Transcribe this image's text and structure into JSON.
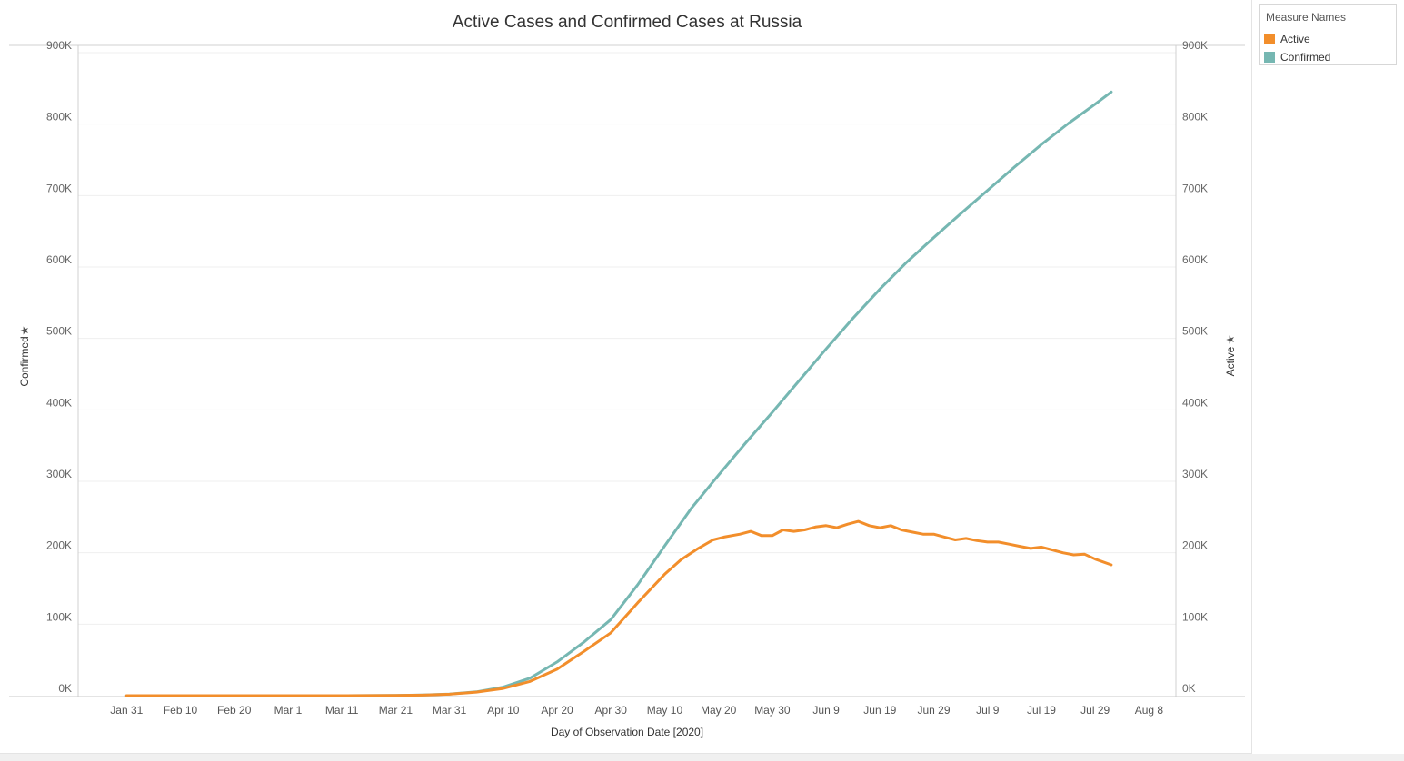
{
  "chart_data": {
    "type": "line",
    "title": "Active Cases and Confirmed Cases at Russia",
    "xlabel": "Day of Observation Date [2020]",
    "ylabel_left": "Confirmed",
    "ylabel_right": "Active",
    "x_ticks": [
      "Jan 31",
      "Feb 10",
      "Feb 20",
      "Mar 1",
      "Mar 11",
      "Mar 21",
      "Mar 31",
      "Apr 10",
      "Apr 20",
      "Apr 30",
      "May 10",
      "May 20",
      "May 30",
      "Jun 9",
      "Jun 19",
      "Jun 29",
      "Jul 9",
      "Jul 19",
      "Jul 29",
      "Aug 8"
    ],
    "y_ticks": [
      "0K",
      "100K",
      "200K",
      "300K",
      "400K",
      "500K",
      "600K",
      "700K",
      "800K",
      "900K"
    ],
    "ylim": [
      0,
      900000
    ],
    "xlim": [
      "2020-01-22",
      "2020-08-13"
    ],
    "grid": true,
    "legend_position": "top-right",
    "legend_title": "Measure Names",
    "series": [
      {
        "name": "Active",
        "color": "#f28e2b",
        "x": [
          "2020-01-31",
          "2020-02-10",
          "2020-02-20",
          "2020-03-01",
          "2020-03-11",
          "2020-03-21",
          "2020-03-26",
          "2020-03-31",
          "2020-04-05",
          "2020-04-10",
          "2020-04-15",
          "2020-04-20",
          "2020-04-25",
          "2020-04-30",
          "2020-05-05",
          "2020-05-10",
          "2020-05-13",
          "2020-05-16",
          "2020-05-19",
          "2020-05-21",
          "2020-05-24",
          "2020-05-26",
          "2020-05-28",
          "2020-05-30",
          "2020-06-01",
          "2020-06-03",
          "2020-06-05",
          "2020-06-07",
          "2020-06-09",
          "2020-06-11",
          "2020-06-13",
          "2020-06-15",
          "2020-06-17",
          "2020-06-19",
          "2020-06-21",
          "2020-06-23",
          "2020-06-25",
          "2020-06-27",
          "2020-06-29",
          "2020-07-01",
          "2020-07-03",
          "2020-07-05",
          "2020-07-07",
          "2020-07-09",
          "2020-07-11",
          "2020-07-13",
          "2020-07-15",
          "2020-07-17",
          "2020-07-19",
          "2020-07-21",
          "2020-07-23",
          "2020-07-25",
          "2020-07-27",
          "2020-07-29",
          "2020-08-01"
        ],
        "values": [
          0,
          0,
          0,
          0,
          10,
          200,
          800,
          2000,
          5000,
          10000,
          20000,
          37000,
          62000,
          88000,
          130000,
          170000,
          190000,
          205000,
          218000,
          222000,
          226000,
          230000,
          224000,
          224000,
          232000,
          230000,
          232000,
          236000,
          238000,
          235000,
          240000,
          244000,
          238000,
          235000,
          238000,
          232000,
          229000,
          226000,
          226000,
          222000,
          218000,
          220000,
          217000,
          215000,
          215000,
          212000,
          209000,
          206000,
          208000,
          204000,
          200000,
          197000,
          198000,
          191000,
          183000
        ]
      },
      {
        "name": "Confirmed",
        "color": "#76b7b2",
        "x": [
          "2020-01-31",
          "2020-02-10",
          "2020-02-20",
          "2020-03-01",
          "2020-03-11",
          "2020-03-21",
          "2020-03-26",
          "2020-03-31",
          "2020-04-05",
          "2020-04-10",
          "2020-04-15",
          "2020-04-20",
          "2020-04-25",
          "2020-04-30",
          "2020-05-05",
          "2020-05-10",
          "2020-05-15",
          "2020-05-20",
          "2020-05-25",
          "2020-05-30",
          "2020-06-04",
          "2020-06-09",
          "2020-06-14",
          "2020-06-19",
          "2020-06-24",
          "2020-06-29",
          "2020-07-04",
          "2020-07-09",
          "2020-07-14",
          "2020-07-19",
          "2020-07-24",
          "2020-07-29",
          "2020-08-01"
        ],
        "values": [
          2,
          2,
          2,
          3,
          20,
          300,
          1000,
          2300,
          5400,
          11900,
          24500,
          47100,
          75000,
          106500,
          155400,
          209700,
          262800,
          308700,
          353400,
          396600,
          441100,
          485300,
          528300,
          569100,
          606900,
          641200,
          674500,
          707300,
          739900,
          771500,
          800800,
          828000,
          845000
        ]
      }
    ]
  }
}
